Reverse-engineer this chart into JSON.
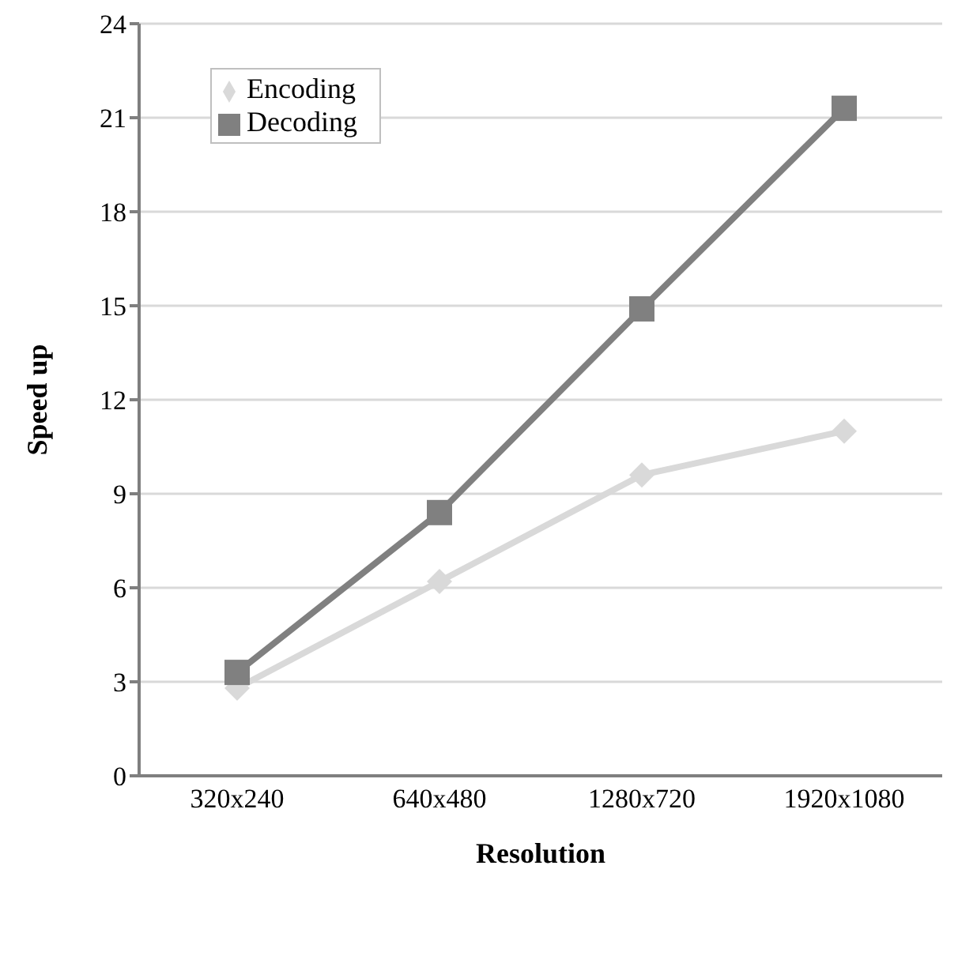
{
  "chart_data": {
    "type": "line",
    "xlabel": "Resolution",
    "ylabel": "Speed up",
    "categories": [
      "320x240",
      "640x480",
      "1280x720",
      "1920x1080"
    ],
    "series": [
      {
        "name": "Encoding",
        "color": "#d9d9d9",
        "marker": "diamond",
        "values": [
          2.8,
          6.2,
          9.6,
          11.0
        ]
      },
      {
        "name": "Decoding",
        "color": "#808080",
        "marker": "square",
        "values": [
          3.3,
          8.4,
          14.9,
          21.3
        ]
      }
    ],
    "ylim": [
      0,
      24
    ],
    "yticks": [
      0,
      3,
      6,
      9,
      12,
      15,
      18,
      21,
      24
    ],
    "grid": "y",
    "legend": "top left"
  }
}
